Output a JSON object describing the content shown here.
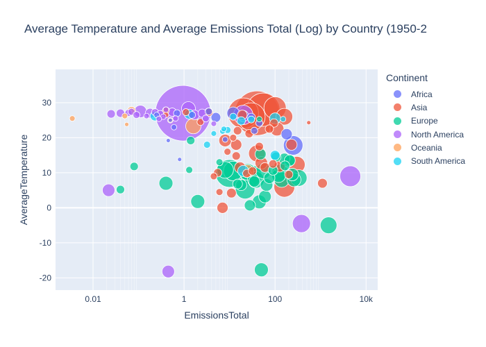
{
  "title": "Average Temperature and Average Emissions Total (Log) by Country (1950-2",
  "legend": {
    "title": "Continent",
    "items": [
      {
        "label": "Africa",
        "color": "#636efa"
      },
      {
        "label": "Asia",
        "color": "#ef553b"
      },
      {
        "label": "Europe",
        "color": "#00cc96"
      },
      {
        "label": "North America",
        "color": "#ab63fa"
      },
      {
        "label": "Oceania",
        "color": "#ffa15a"
      },
      {
        "label": "South America",
        "color": "#19d3f3"
      }
    ]
  },
  "chart_data": {
    "type": "scatter",
    "title": "Average Temperature and Average Emissions Total (Log) by Country (1950-2",
    "xlabel": "EmissionsTotal",
    "ylabel": "AverageTemperature",
    "xscale": "log",
    "xlim": [
      0.0015,
      18000
    ],
    "ylim": [
      -23.5,
      39.5
    ],
    "xticks": [
      {
        "value": 0.01,
        "label": "0.01"
      },
      {
        "value": 1,
        "label": "1"
      },
      {
        "value": 100,
        "label": "100"
      },
      {
        "value": 10000,
        "label": "10k"
      }
    ],
    "yticks": [
      -20,
      -10,
      0,
      10,
      20,
      30
    ],
    "grid": true,
    "legend_position": "right",
    "marker_size_encodes": "EmissionsTotal",
    "series": [
      {
        "name": "Africa",
        "color": "#636efa",
        "points": [
          {
            "x": 250,
            "y": 17.8,
            "s": 14
          },
          {
            "x": 180,
            "y": 21,
            "s": 8
          },
          {
            "x": 12,
            "y": 27,
            "s": 9
          },
          {
            "x": 5,
            "y": 25.8,
            "s": 7
          },
          {
            "x": 0.7,
            "y": 27,
            "s": 5
          },
          {
            "x": 0.6,
            "y": 23,
            "s": 4
          },
          {
            "x": 0.25,
            "y": 26.5,
            "s": 4
          },
          {
            "x": 0.5,
            "y": 25,
            "s": 3
          },
          {
            "x": 20,
            "y": 26.2,
            "s": 8
          },
          {
            "x": 35,
            "y": 22,
            "s": 5
          },
          {
            "x": 45,
            "y": 24.2,
            "s": 5
          },
          {
            "x": 1.5,
            "y": 26.5,
            "s": 5
          },
          {
            "x": 8,
            "y": 19.5,
            "s": 4
          },
          {
            "x": 0.45,
            "y": 19.2,
            "s": 3
          },
          {
            "x": 30,
            "y": 25.8,
            "s": 6
          },
          {
            "x": 3.5,
            "y": 27.5,
            "s": 5
          },
          {
            "x": 0.8,
            "y": 13.8,
            "s": 3
          }
        ]
      },
      {
        "name": "Asia",
        "color": "#ef553b",
        "points": [
          {
            "x": 20,
            "y": 27,
            "s": 22
          },
          {
            "x": 40,
            "y": 27,
            "s": 32
          },
          {
            "x": 30,
            "y": 26,
            "s": 20
          },
          {
            "x": 55,
            "y": 28,
            "s": 24
          },
          {
            "x": 100,
            "y": 28.5,
            "s": 16
          },
          {
            "x": 160,
            "y": 26,
            "s": 12
          },
          {
            "x": 300,
            "y": 12.3,
            "s": 12
          },
          {
            "x": 160,
            "y": 6,
            "s": 15
          },
          {
            "x": 230,
            "y": 18,
            "s": 8
          },
          {
            "x": 110,
            "y": 22.5,
            "s": 10
          },
          {
            "x": 40,
            "y": 15.5,
            "s": 12
          },
          {
            "x": 50,
            "y": 12.8,
            "s": 9
          },
          {
            "x": 60,
            "y": 11.5,
            "s": 7
          },
          {
            "x": 125,
            "y": 11.8,
            "s": 8
          },
          {
            "x": 8,
            "y": 19.2,
            "s": 9
          },
          {
            "x": 14,
            "y": 18,
            "s": 8
          },
          {
            "x": 17,
            "y": 11.5,
            "s": 8
          },
          {
            "x": 7,
            "y": 0,
            "s": 8
          },
          {
            "x": 11,
            "y": 4.2,
            "s": 7
          },
          {
            "x": 1100,
            "y": 7,
            "s": 7
          },
          {
            "x": 5.5,
            "y": 10,
            "s": 6
          },
          {
            "x": 3.5,
            "y": 27.3,
            "s": 6
          },
          {
            "x": 95,
            "y": 24.2,
            "s": 6
          },
          {
            "x": 27,
            "y": 21.2,
            "s": 6
          },
          {
            "x": 45,
            "y": 17.5,
            "s": 6
          },
          {
            "x": 75,
            "y": 22.5,
            "s": 6
          },
          {
            "x": 14,
            "y": 14.8,
            "s": 6
          },
          {
            "x": 90,
            "y": 12.5,
            "s": 6
          },
          {
            "x": 4.5,
            "y": 9,
            "s": 5
          },
          {
            "x": 6,
            "y": 4.5,
            "s": 5
          },
          {
            "x": 550,
            "y": 24.3,
            "s": 3
          },
          {
            "x": 12,
            "y": 20,
            "s": 5
          },
          {
            "x": 9,
            "y": 16,
            "s": 5
          },
          {
            "x": 200,
            "y": 9.5,
            "s": 6
          },
          {
            "x": 19,
            "y": 26.5,
            "s": 7
          },
          {
            "x": 15,
            "y": 22,
            "s": 6
          },
          {
            "x": 0.4,
            "y": 26.5,
            "s": 4
          },
          {
            "x": 2.3,
            "y": 24.5,
            "s": 5
          },
          {
            "x": 1.1,
            "y": 27.3,
            "s": 5
          },
          {
            "x": 24,
            "y": 9.8,
            "s": 6
          },
          {
            "x": 32,
            "y": 10.5,
            "s": 6
          },
          {
            "x": 0.4,
            "y": 27.8,
            "s": 5
          }
        ]
      },
      {
        "name": "Europe",
        "color": "#00cc96",
        "points": [
          {
            "x": 10,
            "y": 9.8,
            "s": 20
          },
          {
            "x": 12,
            "y": 10.5,
            "s": 14
          },
          {
            "x": 8,
            "y": 10.8,
            "s": 12
          },
          {
            "x": 22,
            "y": 5.3,
            "s": 14
          },
          {
            "x": 30,
            "y": 9.2,
            "s": 15
          },
          {
            "x": 25,
            "y": 10.2,
            "s": 12
          },
          {
            "x": 38,
            "y": 8,
            "s": 12
          },
          {
            "x": 45,
            "y": 1.7,
            "s": 10
          },
          {
            "x": 60,
            "y": 3.2,
            "s": 9
          },
          {
            "x": 55,
            "y": 10.5,
            "s": 11
          },
          {
            "x": 65,
            "y": 6.5,
            "s": 9
          },
          {
            "x": 130,
            "y": 10,
            "s": 12
          },
          {
            "x": 140,
            "y": 8,
            "s": 11
          },
          {
            "x": 120,
            "y": 9.2,
            "s": 10
          },
          {
            "x": 200,
            "y": 13.5,
            "s": 9
          },
          {
            "x": 260,
            "y": 8,
            "s": 10
          },
          {
            "x": 330,
            "y": 8.5,
            "s": 12
          },
          {
            "x": 240,
            "y": 9.5,
            "s": 9
          },
          {
            "x": 1500,
            "y": -5,
            "s": 12
          },
          {
            "x": 50,
            "y": -17.7,
            "s": 10
          },
          {
            "x": 0.4,
            "y": 7,
            "s": 10
          },
          {
            "x": 2,
            "y": 1.8,
            "s": 10
          },
          {
            "x": 0.08,
            "y": 11.8,
            "s": 6
          },
          {
            "x": 0.04,
            "y": 5.2,
            "s": 6
          },
          {
            "x": 1.4,
            "y": 19.2,
            "s": 6
          },
          {
            "x": 1.3,
            "y": 10.8,
            "s": 5
          },
          {
            "x": 28,
            "y": 0.7,
            "s": 8
          },
          {
            "x": 18,
            "y": 6.5,
            "s": 8
          },
          {
            "x": 48,
            "y": 15.3,
            "s": 8
          },
          {
            "x": 105,
            "y": 14.5,
            "s": 7
          },
          {
            "x": 160,
            "y": 14,
            "s": 8
          },
          {
            "x": 210,
            "y": 13.5,
            "s": 8
          },
          {
            "x": 75,
            "y": 8.5,
            "s": 8
          },
          {
            "x": 35,
            "y": 7.5,
            "s": 8
          },
          {
            "x": 6,
            "y": 13,
            "s": 5
          },
          {
            "x": 15,
            "y": 6.8,
            "s": 7
          },
          {
            "x": 90,
            "y": 10.7,
            "s": 7
          },
          {
            "x": 165,
            "y": 12,
            "s": 7
          },
          {
            "x": 45,
            "y": 25.3,
            "s": 4
          }
        ]
      },
      {
        "name": "North America",
        "color": "#ab63fa",
        "points": [
          {
            "x": 0.95,
            "y": 27,
            "s": 40
          },
          {
            "x": 4500,
            "y": 9,
            "s": 15
          },
          {
            "x": 380,
            "y": -4.5,
            "s": 13
          },
          {
            "x": 0.45,
            "y": -18.2,
            "s": 9
          },
          {
            "x": 0.022,
            "y": 5,
            "s": 9
          },
          {
            "x": 0.11,
            "y": 27.5,
            "s": 9
          },
          {
            "x": 0.18,
            "y": 27,
            "s": 7
          },
          {
            "x": 0.04,
            "y": 27,
            "s": 6
          },
          {
            "x": 0.025,
            "y": 26.8,
            "s": 6
          },
          {
            "x": 0.06,
            "y": 27.1,
            "s": 5
          },
          {
            "x": 0.07,
            "y": 27.4,
            "s": 5
          },
          {
            "x": 0.09,
            "y": 26.5,
            "s": 5
          },
          {
            "x": 0.23,
            "y": 27.3,
            "s": 5
          },
          {
            "x": 0.3,
            "y": 26.8,
            "s": 5
          },
          {
            "x": 0.55,
            "y": 27.3,
            "s": 6
          },
          {
            "x": 1.7,
            "y": 26.5,
            "s": 7
          },
          {
            "x": 2.5,
            "y": 27,
            "s": 6
          },
          {
            "x": 3,
            "y": 25.5,
            "s": 5
          },
          {
            "x": 20,
            "y": 26.5,
            "s": 14
          },
          {
            "x": 0.15,
            "y": 26.2,
            "s": 4
          },
          {
            "x": 0.35,
            "y": 26,
            "s": 4
          },
          {
            "x": 0.65,
            "y": 25.5,
            "s": 4
          },
          {
            "x": 1.25,
            "y": 28.3,
            "s": 10
          },
          {
            "x": 4.5,
            "y": 24,
            "s": 4
          },
          {
            "x": 0.4,
            "y": 28,
            "s": 4
          },
          {
            "x": 0.28,
            "y": 25.4,
            "s": 4
          }
        ]
      },
      {
        "name": "Oceania",
        "color": "#ffa15a",
        "points": [
          {
            "x": 0.0035,
            "y": 25.5,
            "s": 4
          },
          {
            "x": 0.07,
            "y": 27.7,
            "s": 6
          },
          {
            "x": 0.05,
            "y": 26.2,
            "s": 4
          },
          {
            "x": 0.055,
            "y": 23.8,
            "s": 3
          },
          {
            "x": 1.6,
            "y": 23.3,
            "s": 11
          },
          {
            "x": 25,
            "y": 10.5,
            "s": 9
          },
          {
            "x": 0.5,
            "y": 25,
            "s": 4
          }
        ]
      },
      {
        "name": "South America",
        "color": "#19d3f3",
        "points": [
          {
            "x": 100,
            "y": 25.5,
            "s": 8
          },
          {
            "x": 0.23,
            "y": 26.2,
            "s": 7
          },
          {
            "x": 1.3,
            "y": 26.7,
            "s": 7
          },
          {
            "x": 3.2,
            "y": 18,
            "s": 5
          },
          {
            "x": 4.5,
            "y": 21.2,
            "s": 4
          },
          {
            "x": 7,
            "y": 21.8,
            "s": 4
          },
          {
            "x": 7.5,
            "y": 22.5,
            "s": 4
          },
          {
            "x": 12,
            "y": 26,
            "s": 5
          },
          {
            "x": 18,
            "y": 24.8,
            "s": 6
          },
          {
            "x": 30,
            "y": 25.2,
            "s": 5
          },
          {
            "x": 150,
            "y": 25.3,
            "s": 4
          },
          {
            "x": 100,
            "y": 15,
            "s": 7
          },
          {
            "x": 20,
            "y": 10.5,
            "s": 8
          },
          {
            "x": 9,
            "y": 22.2,
            "s": 5
          }
        ]
      }
    ]
  }
}
